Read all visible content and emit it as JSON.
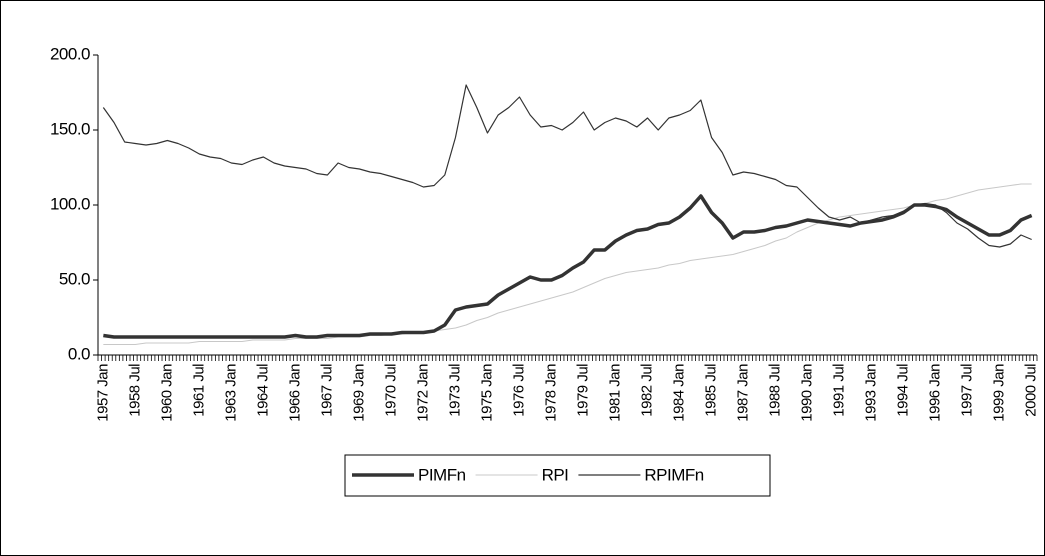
{
  "chart_data": {
    "type": "line",
    "categories": [
      "1957 Jan",
      null,
      null,
      "1958 Jul",
      null,
      null,
      "1960 Jan",
      null,
      null,
      "1961 Jul",
      null,
      null,
      "1963 Jan",
      null,
      null,
      "1964 Jul",
      null,
      null,
      "1966 Jan",
      null,
      null,
      "1967 Jul",
      null,
      null,
      "1969 Jan",
      null,
      null,
      "1970 Jul",
      null,
      null,
      "1972 Jan",
      null,
      null,
      "1973 Jul",
      null,
      null,
      "1975 Jan",
      null,
      null,
      "1976 Jul",
      null,
      null,
      "1978 Jan",
      null,
      null,
      "1979 Jul",
      null,
      null,
      "1981 Jan",
      null,
      null,
      "1982 Jul",
      null,
      null,
      "1984 Jan",
      null,
      null,
      "1985 Jul",
      null,
      null,
      "1987 Jan",
      null,
      null,
      "1988 Jul",
      null,
      null,
      "1990 Jan",
      null,
      null,
      "1991 Jul",
      null,
      null,
      "1993 Jan",
      null,
      null,
      "1994 Jul",
      null,
      null,
      "1996 Jan",
      null,
      null,
      "1997 Jul",
      null,
      null,
      "1999 Jan",
      null,
      null,
      "2000 Jul"
    ],
    "series": [
      {
        "name": "PIMFn",
        "color": "#333333",
        "line_width": 3.5,
        "values": [
          13,
          12,
          12,
          12,
          12,
          12,
          12,
          12,
          12,
          12,
          12,
          12,
          12,
          12,
          12,
          12,
          12,
          12,
          13,
          12,
          12,
          13,
          13,
          13,
          13,
          14,
          14,
          14,
          15,
          15,
          15,
          16,
          20,
          30,
          32,
          33,
          34,
          40,
          44,
          48,
          52,
          50,
          50,
          53,
          58,
          62,
          70,
          70,
          76,
          80,
          83,
          84,
          87,
          88,
          92,
          98,
          106,
          95,
          88,
          78,
          82,
          82,
          83,
          85,
          86,
          88,
          90,
          89,
          88,
          87,
          86,
          88,
          89,
          90,
          92,
          95,
          100,
          100,
          99,
          97,
          92,
          88,
          84,
          80,
          80,
          83,
          90,
          93
        ]
      },
      {
        "name": "RPI",
        "color": "#c8c8c8",
        "line_width": 1,
        "values": [
          7,
          7,
          7,
          7,
          8,
          8,
          8,
          8,
          8,
          9,
          9,
          9,
          9,
          9,
          10,
          10,
          10,
          10,
          11,
          11,
          11,
          11,
          12,
          12,
          12,
          13,
          13,
          14,
          14,
          15,
          15,
          16,
          17,
          18,
          20,
          23,
          25,
          28,
          30,
          32,
          34,
          36,
          38,
          40,
          42,
          45,
          48,
          51,
          53,
          55,
          56,
          57,
          58,
          60,
          61,
          63,
          64,
          65,
          66,
          67,
          69,
          71,
          73,
          76,
          78,
          82,
          85,
          88,
          90,
          92,
          93,
          94,
          95,
          96,
          97,
          98,
          100,
          101,
          103,
          104,
          106,
          108,
          110,
          111,
          112,
          113,
          114,
          114
        ]
      },
      {
        "name": "RPIMFn",
        "color": "#333333",
        "line_width": 1.2,
        "values": [
          165,
          155,
          142,
          141,
          140,
          141,
          143,
          141,
          138,
          134,
          132,
          131,
          128,
          127,
          130,
          132,
          128,
          126,
          125,
          124,
          121,
          120,
          128,
          125,
          124,
          122,
          121,
          119,
          117,
          115,
          112,
          113,
          120,
          145,
          180,
          165,
          148,
          160,
          165,
          172,
          160,
          152,
          153,
          150,
          155,
          162,
          150,
          155,
          158,
          156,
          152,
          158,
          150,
          158,
          160,
          163,
          170,
          145,
          135,
          120,
          122,
          121,
          119,
          117,
          113,
          112,
          105,
          98,
          92,
          90,
          92,
          88,
          90,
          92,
          93,
          96,
          100,
          101,
          100,
          95,
          88,
          84,
          78,
          73,
          72,
          74,
          80,
          77
        ]
      }
    ],
    "ylim": [
      0,
      200
    ],
    "yticks": [
      {
        "value": 0,
        "label": "0.0"
      },
      {
        "value": 50,
        "label": "50.0"
      },
      {
        "value": 100,
        "label": "100.0"
      },
      {
        "value": 150,
        "label": "150.0"
      },
      {
        "value": 200,
        "label": "200.0"
      }
    ],
    "grid": false
  }
}
